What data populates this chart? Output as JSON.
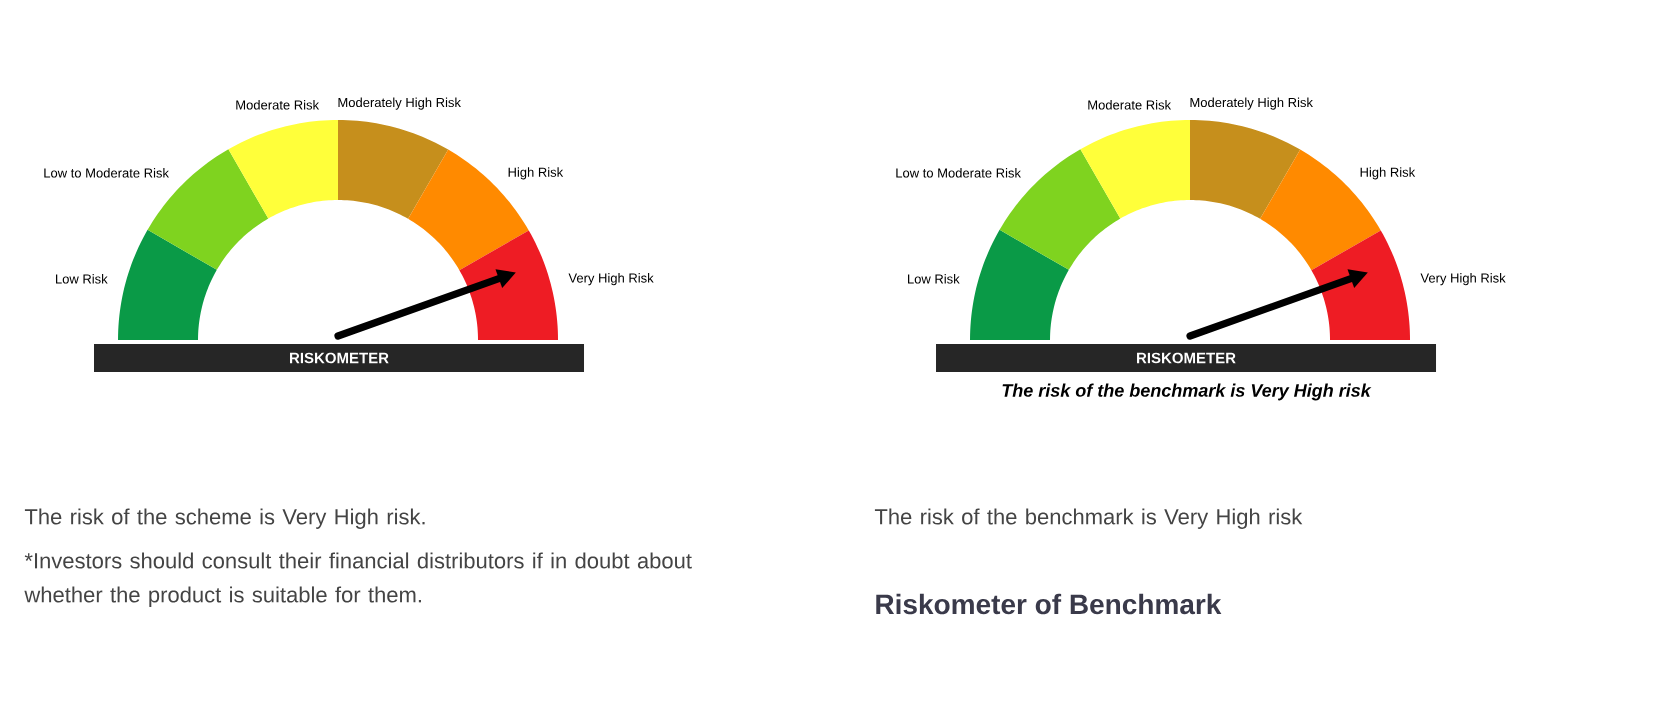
{
  "chart_data": [
    {
      "type": "donut",
      "categories": [
        "Low Risk",
        "Low to Moderate Risk",
        "Moderate Risk",
        "Moderately High Risk",
        "High Risk",
        "Very High Risk"
      ],
      "values": [
        16.7,
        16.7,
        16.6,
        16.7,
        16.7,
        16.6
      ],
      "colors": [
        "#0a9a47",
        "#7fd31f",
        "#ffff3a",
        "#c68f1c",
        "#ff8a00",
        "#ee1c24"
      ],
      "needle": "Very High Risk",
      "xlabel": "RISKOMETER",
      "annotations": [
        "The risk of the scheme is Very High risk.",
        "*Investors should consult their financial distributors if in doubt about whether the product is suitable for them."
      ]
    },
    {
      "type": "donut",
      "categories": [
        "Low Risk",
        "Low to Moderate Risk",
        "Moderate Risk",
        "Moderately High Risk",
        "High Risk",
        "Very High Risk"
      ],
      "values": [
        16.7,
        16.7,
        16.6,
        16.7,
        16.7,
        16.6
      ],
      "colors": [
        "#0a9a47",
        "#7fd31f",
        "#ffff3a",
        "#c68f1c",
        "#ff8a00",
        "#ee1c24"
      ],
      "needle": "Very High Risk",
      "xlabel": "RISKOMETER",
      "subtitle": "The risk of the benchmark is Very High risk",
      "annotations": [
        "The risk of the benchmark is Very High risk"
      ],
      "title": "Riskometer of Benchmark"
    }
  ]
}
